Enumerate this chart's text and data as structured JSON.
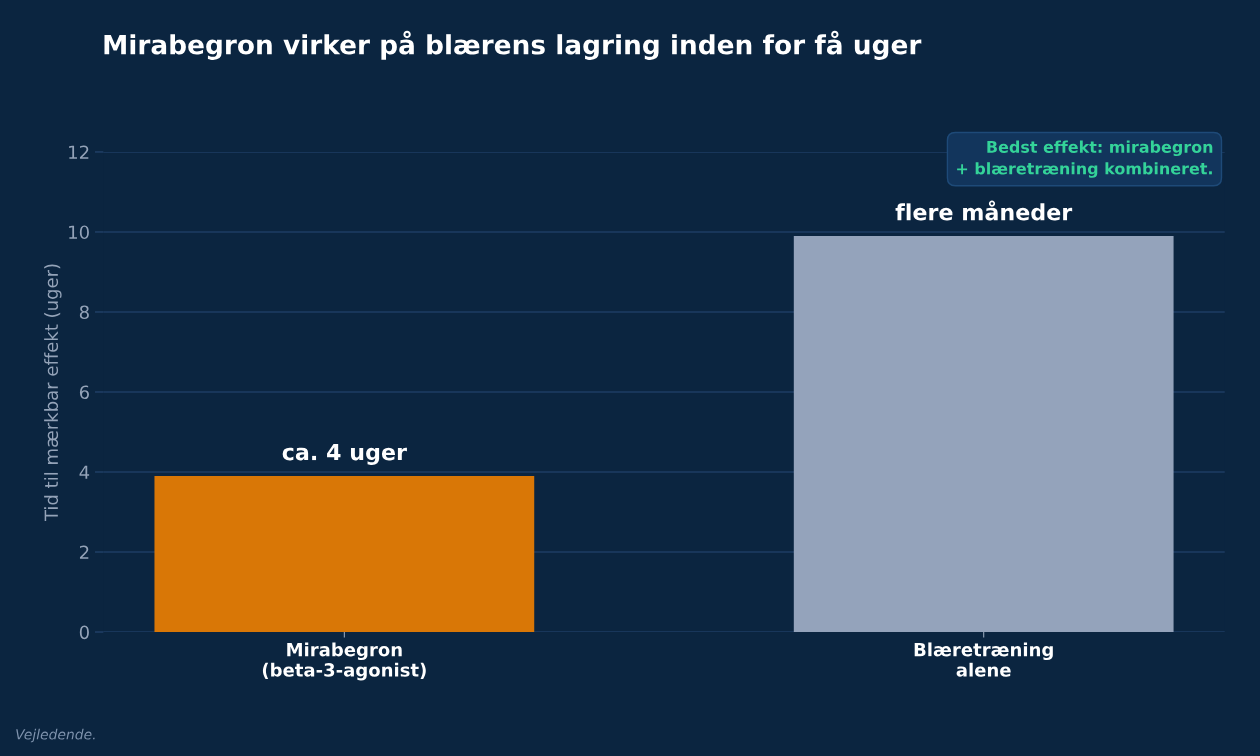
{
  "chart_data": {
    "type": "bar",
    "title": "Mirabegron virker på blærens lagring inden for få uger",
    "ylabel": "Tid til mærkbar effekt (uger)",
    "categories": [
      "Mirabegron\n(beta-3-agonist)",
      "Blæretræning\nalene"
    ],
    "values": [
      3.9,
      9.9
    ],
    "colors": [
      "#d97706",
      "#94a3bb"
    ],
    "value_labels": [
      "ca. 4 uger",
      "flere måneder"
    ],
    "ylim": [
      0,
      12
    ],
    "yticks": [
      0,
      2,
      4,
      6,
      8,
      10,
      12
    ],
    "grid": "y",
    "annotations": [
      "Bedst effekt: mirabegron\n+ blæretræning kombineret.",
      "Vejledende."
    ]
  }
}
